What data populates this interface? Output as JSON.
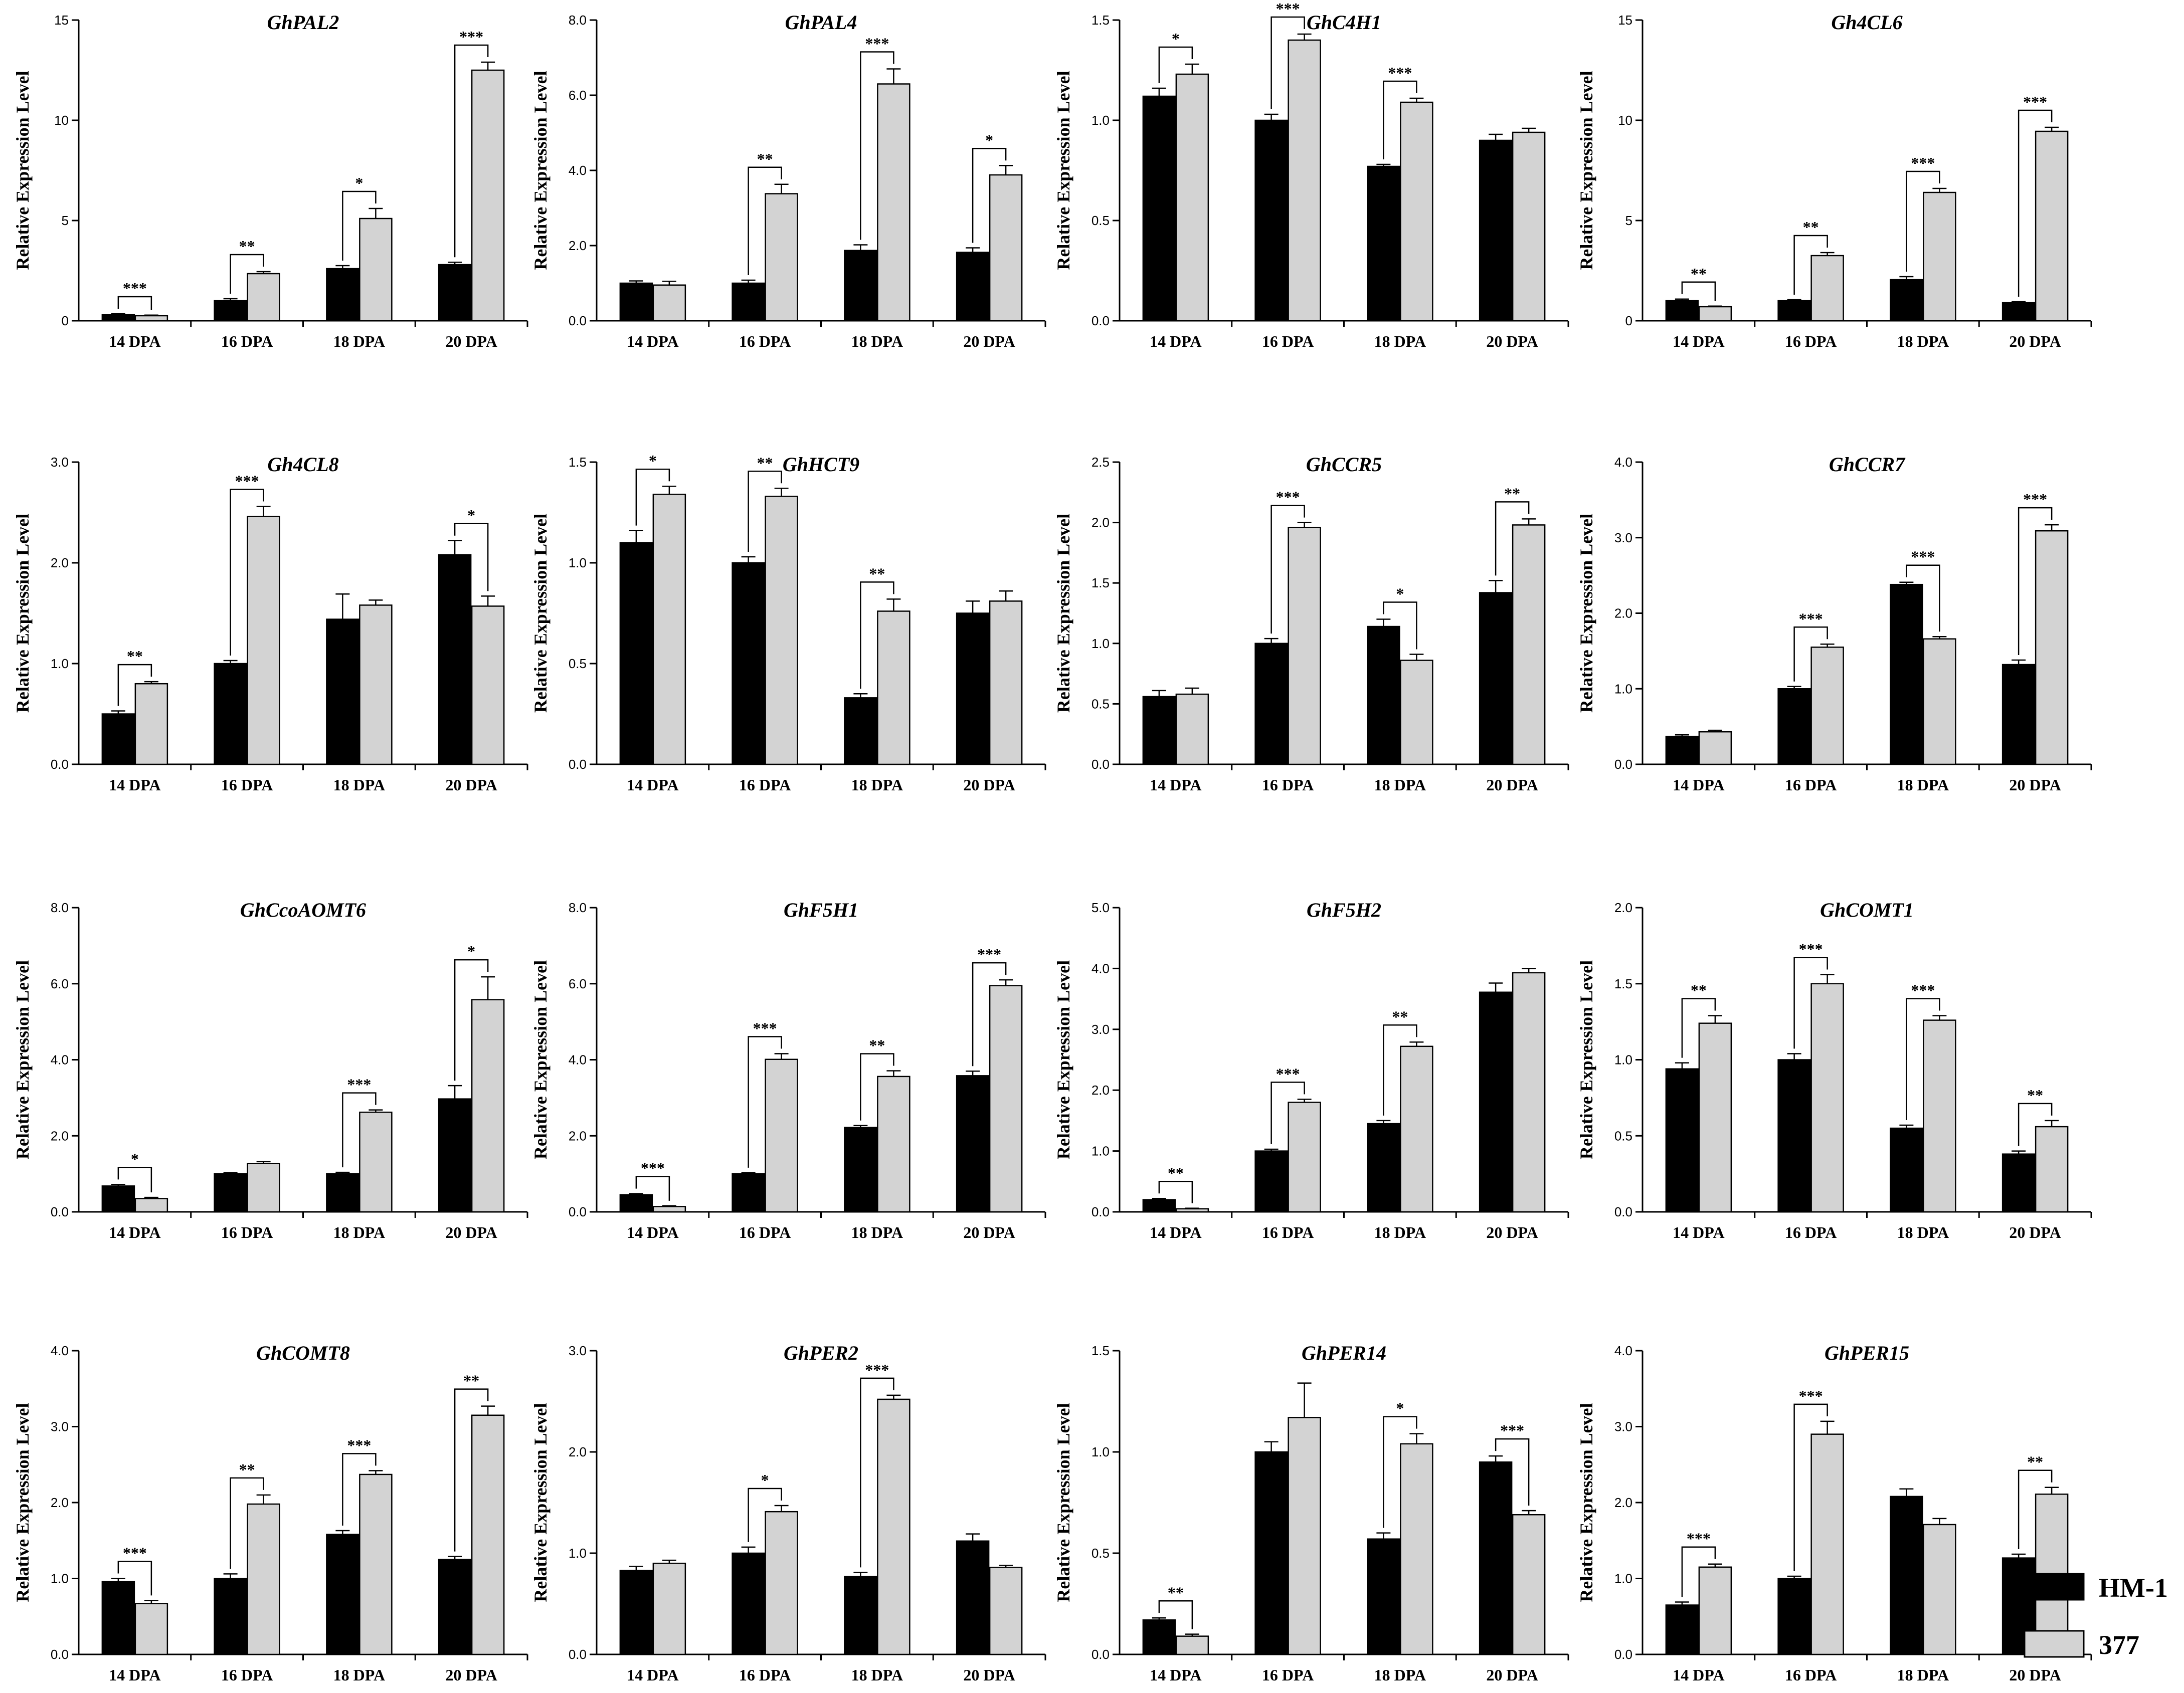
{
  "chart_data": [
    {
      "type": "bar",
      "title": "GhPAL2",
      "ylabel": "Relative Expression Level",
      "categories": [
        "14 DPA",
        "16 DPA",
        "18 DPA",
        "20 DPA"
      ],
      "ylim": [
        0,
        15
      ],
      "yticks": [
        "0",
        "5",
        "10",
        "15"
      ],
      "series": [
        {
          "name": "HM-1",
          "values": [
            0.3,
            1.0,
            2.6,
            2.8
          ],
          "errors": [
            0.05,
            0.1,
            0.15,
            0.12
          ]
        },
        {
          "name": "377",
          "values": [
            0.25,
            2.35,
            5.1,
            12.5
          ],
          "errors": [
            0.03,
            0.1,
            0.5,
            0.4
          ]
        }
      ],
      "significance": [
        "***",
        "**",
        "*",
        "***"
      ]
    },
    {
      "type": "bar",
      "title": "GhPAL4",
      "ylabel": "Relative Expression Level",
      "categories": [
        "14 DPA",
        "16 DPA",
        "18 DPA",
        "20 DPA"
      ],
      "ylim": [
        0,
        8
      ],
      "yticks": [
        "0.0",
        "2.0",
        "4.0",
        "6.0",
        "8.0"
      ],
      "series": [
        {
          "name": "HM-1",
          "values": [
            1.0,
            1.0,
            1.87,
            1.82
          ],
          "errors": [
            0.06,
            0.08,
            0.15,
            0.12
          ]
        },
        {
          "name": "377",
          "values": [
            0.95,
            3.38,
            6.3,
            3.88
          ],
          "errors": [
            0.1,
            0.25,
            0.4,
            0.25
          ]
        }
      ],
      "significance": [
        "",
        "**",
        "***",
        "*"
      ]
    },
    {
      "type": "bar",
      "title": "GhC4H1",
      "ylabel": "Relative Expression Level",
      "categories": [
        "14 DPA",
        "16 DPA",
        "18 DPA",
        "20 DPA"
      ],
      "ylim": [
        0,
        1.5
      ],
      "yticks": [
        "0.0",
        "0.5",
        "1.0",
        "1.5"
      ],
      "series": [
        {
          "name": "HM-1",
          "values": [
            1.12,
            1.0,
            0.77,
            0.9
          ],
          "errors": [
            0.04,
            0.03,
            0.01,
            0.03
          ]
        },
        {
          "name": "377",
          "values": [
            1.23,
            1.4,
            1.09,
            0.94
          ],
          "errors": [
            0.05,
            0.03,
            0.02,
            0.02
          ]
        }
      ],
      "significance": [
        "*",
        "***",
        "***",
        ""
      ]
    },
    {
      "type": "bar",
      "title": "Gh4CL6",
      "ylabel": "Relative Expression Level",
      "categories": [
        "14 DPA",
        "16 DPA",
        "18 DPA",
        "20 DPA"
      ],
      "ylim": [
        0,
        15
      ],
      "yticks": [
        "0",
        "5",
        "10",
        "15"
      ],
      "series": [
        {
          "name": "HM-1",
          "values": [
            1.0,
            1.0,
            2.05,
            0.9
          ],
          "errors": [
            0.08,
            0.05,
            0.15,
            0.05
          ]
        },
        {
          "name": "377",
          "values": [
            0.7,
            3.25,
            6.4,
            9.45
          ],
          "errors": [
            0.03,
            0.15,
            0.2,
            0.2
          ]
        }
      ],
      "significance": [
        "**",
        "**",
        "***",
        "***"
      ]
    },
    {
      "type": "bar",
      "title": "Gh4CL8",
      "ylabel": "Relative Expression Level",
      "categories": [
        "14 DPA",
        "16 DPA",
        "18 DPA",
        "20 DPA"
      ],
      "ylim": [
        0,
        3
      ],
      "yticks": [
        "0.0",
        "1.0",
        "2.0",
        "3.0"
      ],
      "series": [
        {
          "name": "HM-1",
          "values": [
            0.5,
            1.0,
            1.44,
            2.08
          ],
          "errors": [
            0.03,
            0.03,
            0.25,
            0.14
          ]
        },
        {
          "name": "377",
          "values": [
            0.8,
            2.46,
            1.58,
            1.57
          ],
          "errors": [
            0.02,
            0.1,
            0.05,
            0.1
          ]
        }
      ],
      "significance": [
        "**",
        "***",
        "",
        "*"
      ]
    },
    {
      "type": "bar",
      "title": "GhHCT9",
      "ylabel": "Relative Expression Level",
      "categories": [
        "14 DPA",
        "16 DPA",
        "18 DPA",
        "20 DPA"
      ],
      "ylim": [
        0,
        1.5
      ],
      "yticks": [
        "0.0",
        "0.5",
        "1.0",
        "1.5"
      ],
      "series": [
        {
          "name": "HM-1",
          "values": [
            1.1,
            1.0,
            0.33,
            0.75
          ],
          "errors": [
            0.06,
            0.03,
            0.02,
            0.06
          ]
        },
        {
          "name": "377",
          "values": [
            1.34,
            1.33,
            0.76,
            0.81
          ],
          "errors": [
            0.04,
            0.04,
            0.06,
            0.05
          ]
        }
      ],
      "significance": [
        "*",
        "**",
        "**",
        ""
      ]
    },
    {
      "type": "bar",
      "title": "GhCCR5",
      "ylabel": "Relative Expression Level",
      "categories": [
        "14 DPA",
        "16 DPA",
        "18 DPA",
        "20 DPA"
      ],
      "ylim": [
        0,
        2.5
      ],
      "yticks": [
        "0.0",
        "0.5",
        "1.0",
        "1.5",
        "2.0",
        "2.5"
      ],
      "series": [
        {
          "name": "HM-1",
          "values": [
            0.56,
            1.0,
            1.14,
            1.42
          ],
          "errors": [
            0.05,
            0.04,
            0.06,
            0.1
          ]
        },
        {
          "name": "377",
          "values": [
            0.58,
            1.96,
            0.86,
            1.98
          ],
          "errors": [
            0.05,
            0.04,
            0.05,
            0.05
          ]
        }
      ],
      "significance": [
        "",
        "***",
        "*",
        "**"
      ]
    },
    {
      "type": "bar",
      "title": "GhCCR7",
      "ylabel": "Relative Expression Level",
      "categories": [
        "14 DPA",
        "16 DPA",
        "18 DPA",
        "20 DPA"
      ],
      "ylim": [
        0,
        4
      ],
      "yticks": [
        "0.0",
        "1.0",
        "2.0",
        "3.0",
        "4.0"
      ],
      "series": [
        {
          "name": "HM-1",
          "values": [
            0.37,
            1.0,
            2.38,
            1.32
          ],
          "errors": [
            0.02,
            0.03,
            0.03,
            0.06
          ]
        },
        {
          "name": "377",
          "values": [
            0.43,
            1.55,
            1.66,
            3.09
          ],
          "errors": [
            0.02,
            0.04,
            0.03,
            0.08
          ]
        }
      ],
      "significance": [
        "",
        "***",
        "***",
        "***"
      ]
    },
    {
      "type": "bar",
      "title": "GhCcoAOMT6",
      "ylabel": "Relative Expression Level",
      "categories": [
        "14 DPA",
        "16 DPA",
        "18 DPA",
        "20 DPA"
      ],
      "ylim": [
        0,
        8
      ],
      "yticks": [
        "0.0",
        "2.0",
        "4.0",
        "6.0",
        "8.0"
      ],
      "series": [
        {
          "name": "HM-1",
          "values": [
            0.68,
            1.0,
            1.0,
            2.97
          ],
          "errors": [
            0.04,
            0.03,
            0.04,
            0.35
          ]
        },
        {
          "name": "377",
          "values": [
            0.35,
            1.27,
            2.62,
            5.58
          ],
          "errors": [
            0.03,
            0.05,
            0.06,
            0.6
          ]
        }
      ],
      "significance": [
        "*",
        "",
        "***",
        "*"
      ]
    },
    {
      "type": "bar",
      "title": "GhF5H1",
      "ylabel": "Relative Expression Level",
      "categories": [
        "14 DPA",
        "16 DPA",
        "18 DPA",
        "20 DPA"
      ],
      "ylim": [
        0,
        8
      ],
      "yticks": [
        "0.0",
        "2.0",
        "4.0",
        "6.0",
        "8.0"
      ],
      "series": [
        {
          "name": "HM-1",
          "values": [
            0.45,
            1.0,
            2.22,
            3.58
          ],
          "errors": [
            0.03,
            0.03,
            0.05,
            0.12
          ]
        },
        {
          "name": "377",
          "values": [
            0.14,
            4.01,
            3.56,
            5.95
          ],
          "errors": [
            0.02,
            0.15,
            0.15,
            0.15
          ]
        }
      ],
      "significance": [
        "***",
        "***",
        "**",
        "***"
      ]
    },
    {
      "type": "bar",
      "title": "GhF5H2",
      "ylabel": "Relative Expression Level",
      "categories": [
        "14 DPA",
        "16 DPA",
        "18 DPA",
        "20 DPA"
      ],
      "ylim": [
        0,
        5
      ],
      "yticks": [
        "0.0",
        "1.0",
        "2.0",
        "3.0",
        "4.0",
        "5.0"
      ],
      "series": [
        {
          "name": "HM-1",
          "values": [
            0.2,
            1.0,
            1.45,
            3.61
          ],
          "errors": [
            0.02,
            0.03,
            0.05,
            0.15
          ]
        },
        {
          "name": "377",
          "values": [
            0.05,
            1.8,
            2.72,
            3.93
          ],
          "errors": [
            0.01,
            0.05,
            0.07,
            0.07
          ]
        }
      ],
      "significance": [
        "**",
        "***",
        "**",
        ""
      ]
    },
    {
      "type": "bar",
      "title": "GhCOMT1",
      "ylabel": "Relative Expression Level",
      "categories": [
        "14 DPA",
        "16 DPA",
        "18 DPA",
        "20 DPA"
      ],
      "ylim": [
        0,
        2
      ],
      "yticks": [
        "0.0",
        "0.5",
        "1.0",
        "1.5",
        "2.0"
      ],
      "series": [
        {
          "name": "HM-1",
          "values": [
            0.94,
            1.0,
            0.55,
            0.38
          ],
          "errors": [
            0.04,
            0.04,
            0.02,
            0.02
          ]
        },
        {
          "name": "377",
          "values": [
            1.24,
            1.5,
            1.26,
            0.56
          ],
          "errors": [
            0.05,
            0.06,
            0.03,
            0.04
          ]
        }
      ],
      "significance": [
        "**",
        "***",
        "***",
        "**"
      ]
    },
    {
      "type": "bar",
      "title": "GhCOMT8",
      "ylabel": "Relative Expression Level",
      "categories": [
        "14 DPA",
        "16 DPA",
        "18 DPA",
        "20 DPA"
      ],
      "ylim": [
        0,
        4
      ],
      "yticks": [
        "0.0",
        "1.0",
        "2.0",
        "3.0",
        "4.0"
      ],
      "series": [
        {
          "name": "HM-1",
          "values": [
            0.96,
            1.0,
            1.58,
            1.25
          ],
          "errors": [
            0.04,
            0.06,
            0.05,
            0.04
          ]
        },
        {
          "name": "377",
          "values": [
            0.67,
            1.98,
            2.37,
            3.15
          ],
          "errors": [
            0.04,
            0.12,
            0.05,
            0.12
          ]
        }
      ],
      "significance": [
        "***",
        "**",
        "***",
        "**"
      ]
    },
    {
      "type": "bar",
      "title": "GhPER2",
      "ylabel": "Relative Expression Level",
      "categories": [
        "14 DPA",
        "16 DPA",
        "18 DPA",
        "20 DPA"
      ],
      "ylim": [
        0,
        3
      ],
      "yticks": [
        "0.0",
        "1.0",
        "2.0",
        "3.0"
      ],
      "series": [
        {
          "name": "HM-1",
          "values": [
            0.83,
            1.0,
            0.77,
            1.12
          ],
          "errors": [
            0.04,
            0.06,
            0.04,
            0.07
          ]
        },
        {
          "name": "377",
          "values": [
            0.9,
            1.41,
            2.52,
            0.86
          ],
          "errors": [
            0.03,
            0.06,
            0.04,
            0.02
          ]
        }
      ],
      "significance": [
        "",
        "*",
        "***",
        ""
      ]
    },
    {
      "type": "bar",
      "title": "GhPER14",
      "ylabel": "Relative Expression Level",
      "categories": [
        "14 DPA",
        "16 DPA",
        "18 DPA",
        "20 DPA"
      ],
      "ylim": [
        0,
        1.5
      ],
      "yticks": [
        "0.0",
        "0.5",
        "1.0",
        "1.5"
      ],
      "series": [
        {
          "name": "HM-1",
          "values": [
            0.17,
            1.0,
            0.57,
            0.95
          ],
          "errors": [
            0.01,
            0.05,
            0.03,
            0.03
          ]
        },
        {
          "name": "377",
          "values": [
            0.09,
            1.17,
            1.04,
            0.69
          ],
          "errors": [
            0.01,
            0.17,
            0.05,
            0.02
          ]
        }
      ],
      "significance": [
        "**",
        "",
        "*",
        "***"
      ]
    },
    {
      "type": "bar",
      "title": "GhPER15",
      "ylabel": "Relative Expression Level",
      "categories": [
        "14 DPA",
        "16 DPA",
        "18 DPA",
        "20 DPA"
      ],
      "ylim": [
        0,
        4
      ],
      "yticks": [
        "0.0",
        "1.0",
        "2.0",
        "3.0",
        "4.0"
      ],
      "series": [
        {
          "name": "HM-1",
          "values": [
            0.65,
            1.0,
            2.08,
            1.27
          ],
          "errors": [
            0.04,
            0.03,
            0.1,
            0.05
          ]
        },
        {
          "name": "377",
          "values": [
            1.15,
            2.9,
            1.71,
            2.11
          ],
          "errors": [
            0.04,
            0.17,
            0.08,
            0.09
          ]
        }
      ],
      "significance": [
        "***",
        "***",
        "",
        "**"
      ]
    }
  ],
  "legend": {
    "position": "bottom-right",
    "items": [
      {
        "label": "HM-1",
        "color": "#000000"
      },
      {
        "label": "377",
        "color": "#d3d3d3"
      }
    ]
  },
  "colors": {
    "hm1": "#000000",
    "line377": "#d3d3d3"
  }
}
